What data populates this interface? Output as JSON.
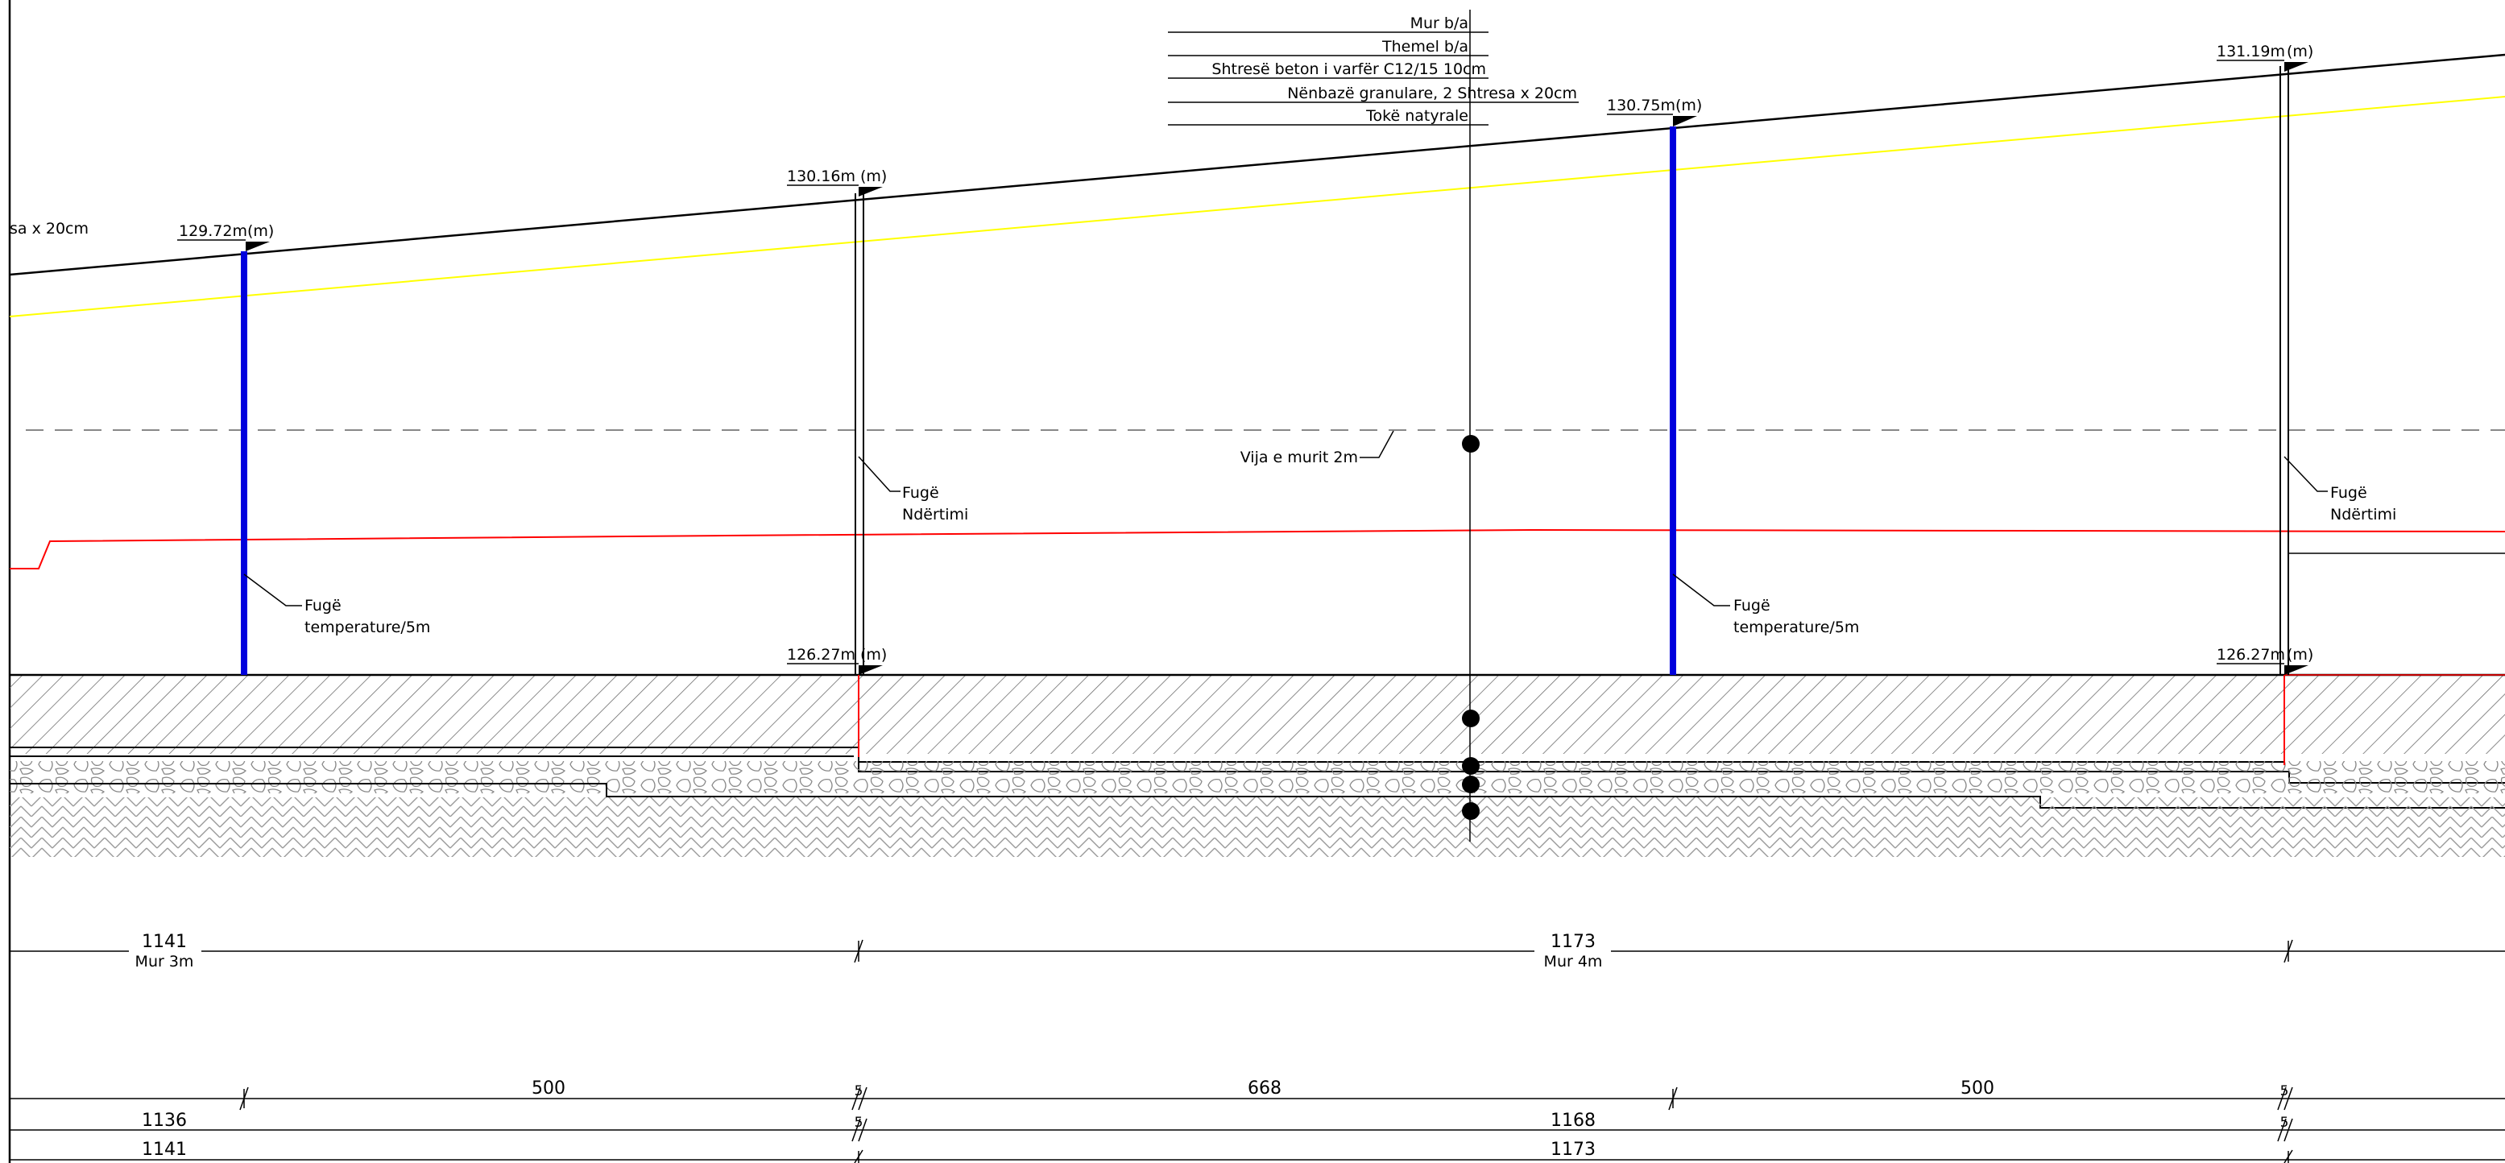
{
  "legend": {
    "items": [
      "Mur b/a",
      "Themel b/a",
      "Shtresë beton i varfër C12/15 10cm",
      "Nënbazë granulare, 2 Shtresa x 20cm",
      "Tokë natyrale"
    ]
  },
  "truncated_label": "sa x 20cm",
  "elevations": {
    "e1": "129.72m",
    "e2": "130.16m",
    "e3": "130.75m",
    "e4": "131.19m",
    "base_left": "126.27m",
    "base_right": "126.27m",
    "marker": "(m)"
  },
  "annotations": {
    "wall_line": "Vija e murit 2m",
    "joint_temp_1": [
      "Fugë",
      "temperature/5m"
    ],
    "joint_build_1": [
      "Fugë",
      "Ndërtimi"
    ],
    "joint_temp_2": [
      "Fugë",
      "temperature/5m"
    ],
    "joint_build_2": [
      "Fugë",
      "Ndërtimi"
    ]
  },
  "walls": {
    "wall1_length": "1141",
    "wall1_name": "Mur 3m",
    "wall2_length": "1173",
    "wall2_name": "Mur 4m"
  },
  "dimensions": {
    "row1": [
      "500",
      "5",
      "668",
      "500",
      "5"
    ],
    "row2": [
      "1136",
      "5",
      "1168",
      "5"
    ],
    "row3": [
      "1141",
      "1173"
    ]
  },
  "colors": {
    "top_line": "#000000",
    "yellow_line": "#ffff00",
    "red_line": "#ff0000",
    "temperature_joint": "#0000dd",
    "hatch": "#555555"
  }
}
